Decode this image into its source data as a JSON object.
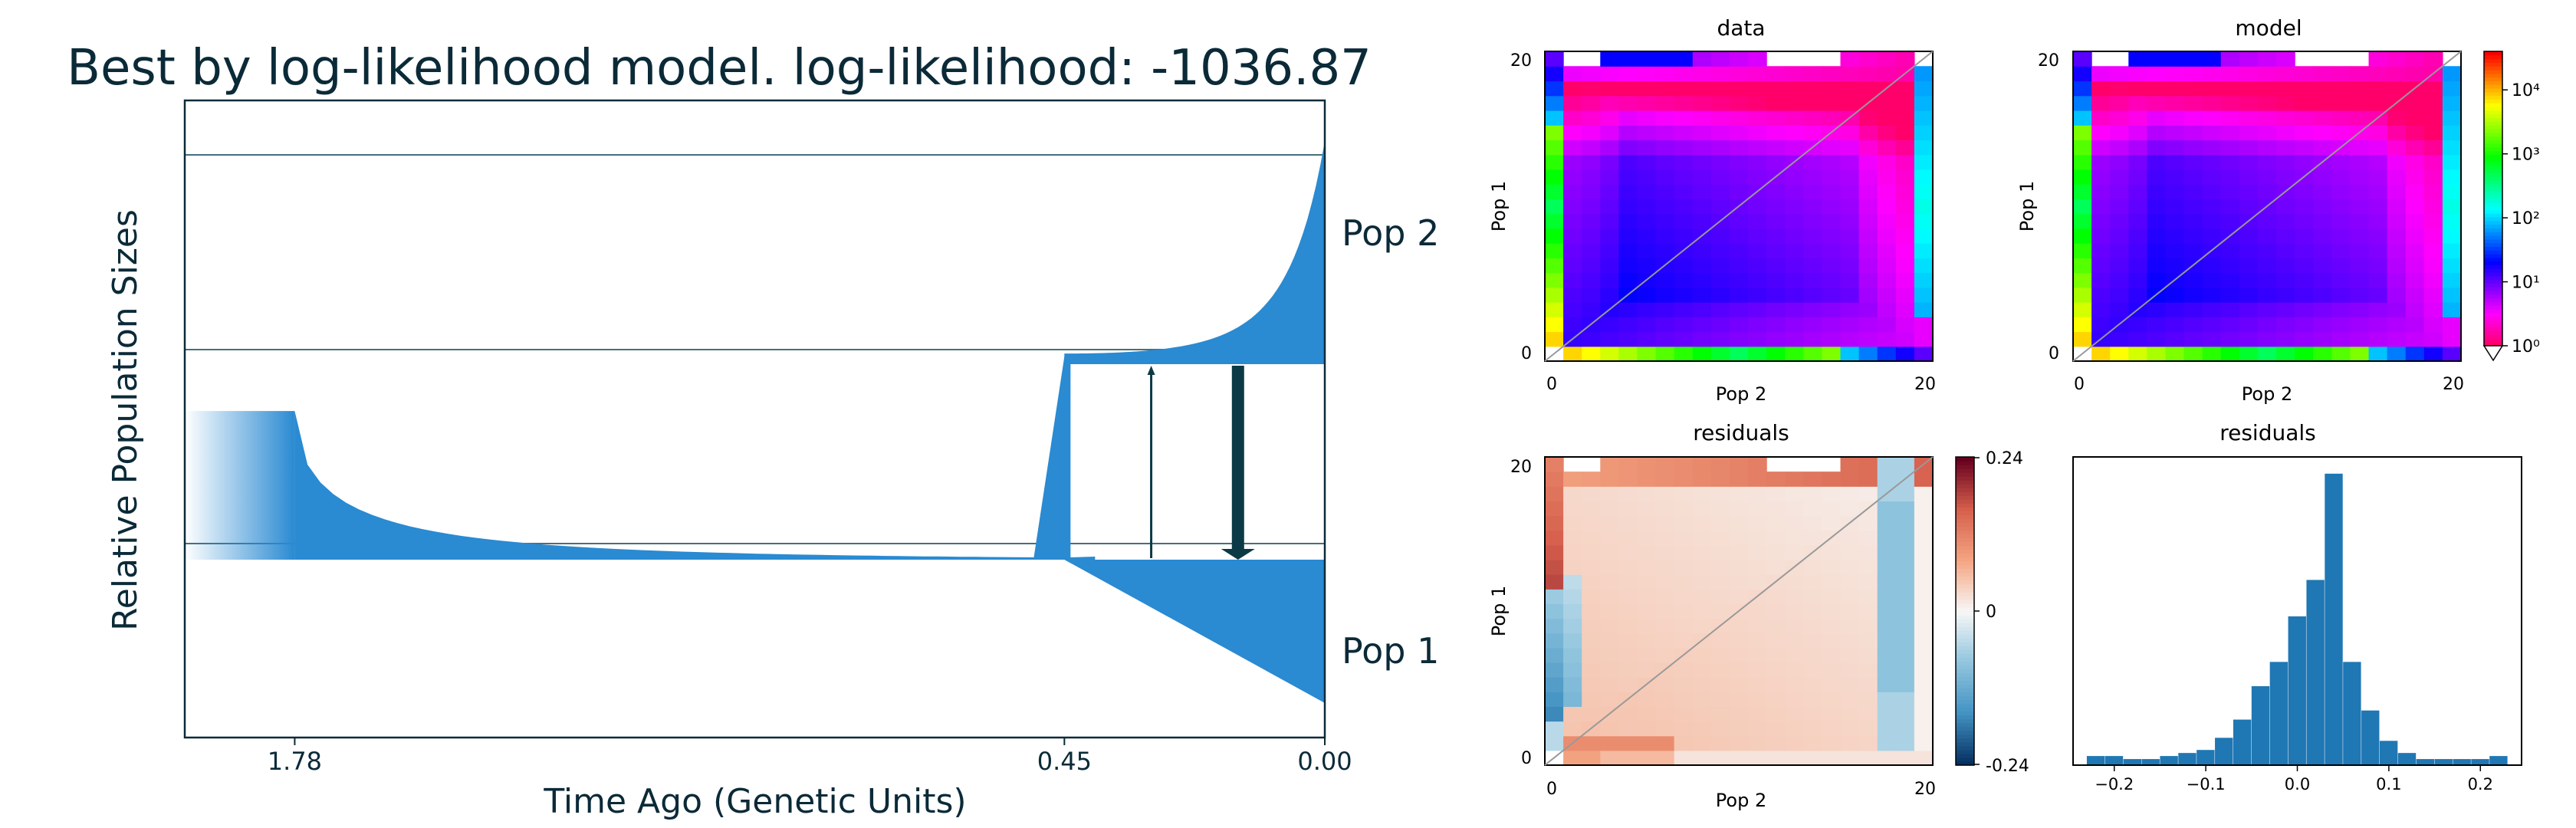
{
  "colors": {
    "ink": "#0b2a38",
    "model_fill": "#2a8ad2",
    "migration_arrow": "#0b3a46",
    "threshold_line": "#44707e",
    "diagonal": "#999999"
  },
  "chart_data": [
    {
      "type": "area",
      "name": "demographic-model",
      "title": "Best by log-likelihood model. log-likelihood: -1036.87",
      "xlabel": "Time Ago (Genetic Units)",
      "ylabel": "Relative Population Sizes",
      "x_ticks": [
        "1.78",
        "0.45",
        "0.00"
      ],
      "x_tick_values": [
        1.78,
        0.45,
        0.0
      ],
      "x_range": [
        1.97,
        0.0
      ],
      "population_labels": [
        "Pop 2",
        "Pop 1"
      ],
      "ancestral_size": 0.28,
      "reference_sizes": [
        0.84,
        0.54,
        0.24
      ],
      "segments": [
        {
          "start": 1.78,
          "end": 0.45,
          "size_start": 0.28,
          "size_end": 0.004,
          "shape": "exponential"
        },
        {
          "split_time": 0.45,
          "pop2_size_at_split": 0.02,
          "pop2_size_now": 0.42,
          "pop2_growth": "exponential",
          "pop1_size_at_split": 0.003,
          "pop1_size_now": 0.27,
          "pop1_growth": "linear"
        }
      ],
      "migration": [
        {
          "from": "Pop 1",
          "to": "Pop 2",
          "time": 0.3,
          "strength": "weak"
        },
        {
          "from": "Pop 2",
          "to": "Pop 1",
          "time": 0.15,
          "strength": "strong"
        }
      ]
    },
    {
      "type": "heatmap",
      "name": "data-sfs",
      "title": "data",
      "xlabel": "Pop 2",
      "ylabel": "Pop 1",
      "x_ticks": [
        "0",
        "20"
      ],
      "y_ticks": [
        "0",
        "20"
      ],
      "x_range": [
        0,
        20
      ],
      "y_range": [
        0,
        20
      ],
      "grid_size": [
        21,
        21
      ],
      "log_scale": true,
      "colormap": "hsv"
    },
    {
      "type": "heatmap",
      "name": "model-sfs",
      "title": "model",
      "xlabel": "Pop 2",
      "ylabel": "Pop 1",
      "x_ticks": [
        "0",
        "20"
      ],
      "y_ticks": [
        "0",
        "20"
      ],
      "x_range": [
        0,
        20
      ],
      "y_range": [
        0,
        20
      ],
      "grid_size": [
        21,
        21
      ],
      "log_scale": true,
      "colorbar_ticks": [
        "10⁰",
        "10¹",
        "10²",
        "10³",
        "10⁴"
      ],
      "colorbar_range": [
        1,
        40000
      ]
    },
    {
      "type": "heatmap",
      "name": "residuals-heatmap",
      "title": "residuals",
      "xlabel": "Pop 2",
      "ylabel": "Pop 1",
      "x_ticks": [
        "0",
        "20"
      ],
      "y_ticks": [
        "0",
        "20"
      ],
      "x_range": [
        0,
        20
      ],
      "y_range": [
        0,
        20
      ],
      "grid_size": [
        21,
        21
      ],
      "colormap": "RdBu_r",
      "colorbar_ticks": [
        "0.24",
        "0",
        "-0.24"
      ],
      "colorbar_range": [
        -0.24,
        0.24
      ]
    },
    {
      "type": "bar",
      "name": "residuals-histogram",
      "title": "residuals",
      "x_ticks": [
        "−0.2",
        "−0.1",
        "0.0",
        "0.1",
        "0.2"
      ],
      "x_tick_values": [
        -0.2,
        -0.1,
        0.0,
        0.1,
        0.2
      ],
      "xlim": [
        -0.245,
        0.245
      ],
      "bin_width": 0.02,
      "bin_centers": [
        -0.22,
        -0.2,
        -0.18,
        -0.16,
        -0.14,
        -0.12,
        -0.1,
        -0.08,
        -0.06,
        -0.04,
        -0.02,
        0.0,
        0.02,
        0.04,
        0.06,
        0.08,
        0.1,
        0.12,
        0.14,
        0.16,
        0.18,
        0.2,
        0.22
      ],
      "values": [
        3,
        3,
        2,
        2,
        3,
        4,
        5,
        9,
        15,
        26,
        34,
        49,
        61,
        96,
        34,
        18,
        8,
        4,
        2,
        2,
        2,
        2,
        3
      ],
      "ylim": [
        0,
        100
      ]
    }
  ]
}
